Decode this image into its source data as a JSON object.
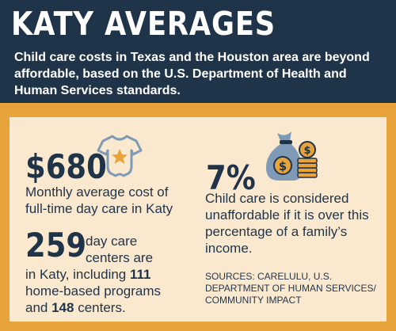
{
  "header": {
    "title": "KATY AVERAGES",
    "subtitle": "Child care costs in Texas and the Houston area are beyond affordable, based on the U.S. Department of Health and Human Services standards."
  },
  "stats": {
    "cost": {
      "value": "$680",
      "description": "Monthly average cost of full-time day care in Katy",
      "icon": "baby-onesie-icon"
    },
    "centers": {
      "value": "259",
      "line1": "day care",
      "line2": "centers are",
      "line3_pre": "in Katy, including ",
      "home_count": "111",
      "line4": "home-based programs",
      "line5_pre": "and ",
      "center_count": "148",
      "line5_post": " centers."
    },
    "percent": {
      "value": "7%",
      "description": "Child care is considered unaffordable if it is over this percentage of a family’s income.",
      "icon": "money-bag-coins-icon"
    }
  },
  "sources": "SOURCES: CARELULU, U.S. DEPARTMENT OF HUMAN SERVICES/ COMMUNITY IMPACT",
  "colors": {
    "navy": "#1f3349",
    "orange": "#e8a33b",
    "cream": "#fbe9cf",
    "icon_blue": "#7f9ab6",
    "icon_gold": "#e8a33b"
  }
}
